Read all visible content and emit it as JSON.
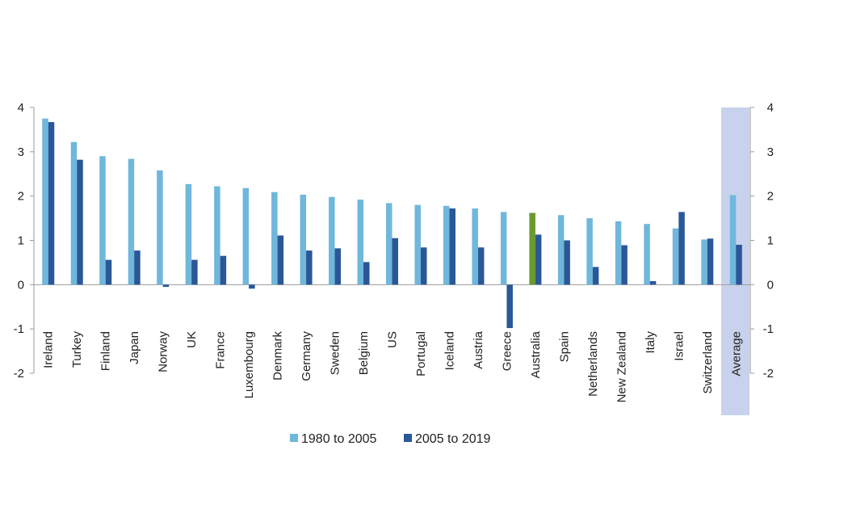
{
  "chart_data": {
    "type": "bar",
    "categories": [
      "Ireland",
      "Turkey",
      "Finland",
      "Japan",
      "Norway",
      "UK",
      "France",
      "Luxembourg",
      "Denmark",
      "Germany",
      "Sweden",
      "Belgium",
      "US",
      "Portugal",
      "Iceland",
      "Austria",
      "Greece",
      "Australia",
      "Spain",
      "Netherlands",
      "New Zealand",
      "Italy",
      "Israel",
      "Switzerland",
      "Average"
    ],
    "series": [
      {
        "name": "1980 to 2005",
        "color": "#6fb7dc",
        "values": [
          3.75,
          3.22,
          2.9,
          2.84,
          2.58,
          2.27,
          2.22,
          2.18,
          2.09,
          2.03,
          1.98,
          1.92,
          1.84,
          1.8,
          1.78,
          1.72,
          1.64,
          1.62,
          1.57,
          1.5,
          1.43,
          1.37,
          1.27,
          1.02,
          2.02
        ]
      },
      {
        "name": "2005 to 2019",
        "color": "#2a5797",
        "values": [
          3.67,
          2.82,
          0.56,
          0.77,
          -0.05,
          0.56,
          0.65,
          -0.09,
          1.11,
          0.77,
          0.82,
          0.51,
          1.05,
          0.84,
          1.72,
          0.84,
          -0.98,
          1.13,
          1.0,
          0.4,
          0.89,
          0.08,
          1.64,
          1.04,
          0.9
        ]
      }
    ],
    "highlight": {
      "category": "Australia",
      "series_index": 0,
      "color": "#6a9a2c"
    },
    "average_band_color": "#c8d2ec",
    "ylim": [
      -2,
      4
    ],
    "yticks": [
      -2,
      -1,
      0,
      1,
      2,
      3,
      4
    ],
    "axes": "left and right, mirrored",
    "grid": false,
    "legend_position": "bottom",
    "title": "",
    "xlabel": "",
    "ylabel": ""
  }
}
